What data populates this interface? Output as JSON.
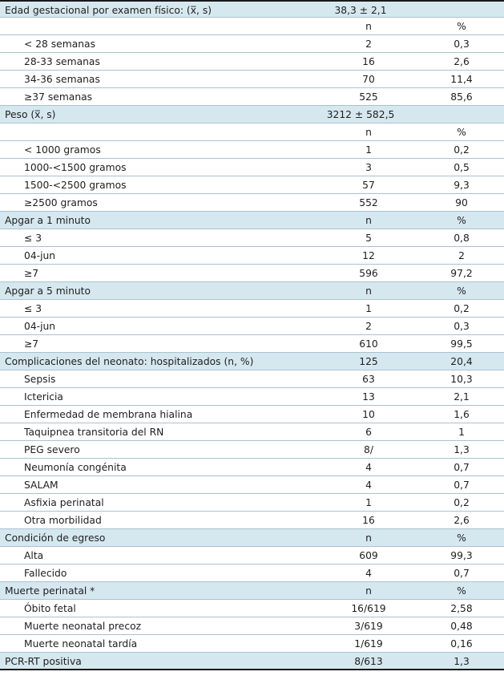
{
  "rows": [
    {
      "label": "Edad gestacional por examen físico: (x̅, s)",
      "value": "38,3 ± 2,1",
      "type": "section-single"
    },
    {
      "label": "",
      "n": "n",
      "pct": "%",
      "type": "header"
    },
    {
      "label": "< 28 semanas",
      "n": "2",
      "pct": "0,3",
      "type": "sub"
    },
    {
      "label": "28-33 semanas",
      "n": "16",
      "pct": "2,6",
      "type": "sub"
    },
    {
      "label": "34-36 semanas",
      "n": "70",
      "pct": "11,4",
      "type": "sub"
    },
    {
      "label": "≥37 semanas",
      "n": "525",
      "pct": "85,6",
      "type": "sub"
    },
    {
      "label": "Peso (x̅, s)",
      "value": "3212 ± 582,5",
      "type": "section-single"
    },
    {
      "label": "",
      "n": "n",
      "pct": "%",
      "type": "header"
    },
    {
      "label": "< 1000 gramos",
      "n": "1",
      "pct": "0,2",
      "type": "sub"
    },
    {
      "label": "1000-<1500 gramos",
      "n": "3",
      "pct": "0,5",
      "type": "sub"
    },
    {
      "label": "1500-<2500 gramos",
      "n": "57",
      "pct": "9,3",
      "type": "sub"
    },
    {
      "label": "≥2500 gramos",
      "n": "552",
      "pct": "90",
      "type": "sub"
    },
    {
      "label": "Apgar a 1 minuto",
      "n": "n",
      "pct": "%",
      "type": "section"
    },
    {
      "label": "≤ 3",
      "n": "5",
      "pct": "0,8",
      "type": "sub"
    },
    {
      "label": "04-jun",
      "n": "12",
      "pct": "2",
      "type": "sub"
    },
    {
      "label": "≥7",
      "n": "596",
      "pct": "97,2",
      "type": "sub"
    },
    {
      "label": "Apgar a 5 minuto",
      "n": "n",
      "pct": "%",
      "type": "section"
    },
    {
      "label": "≤ 3",
      "n": "1",
      "pct": "0,2",
      "type": "sub"
    },
    {
      "label": "04-jun",
      "n": "2",
      "pct": "0,3",
      "type": "sub"
    },
    {
      "label": "≥7",
      "n": "610",
      "pct": "99,5",
      "type": "sub"
    },
    {
      "label": "Complicaciones del neonato: hospitalizados (n, %)",
      "n": "125",
      "pct": "20,4",
      "type": "section"
    },
    {
      "label": "Sepsis",
      "n": "63",
      "pct": "10,3",
      "type": "sub"
    },
    {
      "label": "Ictericia",
      "n": "13",
      "pct": "2,1",
      "type": "sub"
    },
    {
      "label": "Enfermedad de membrana hialina",
      "n": "10",
      "pct": "1,6",
      "type": "sub"
    },
    {
      "label": "Taquipnea transitoria del RN",
      "n": "6",
      "pct": "1",
      "type": "sub"
    },
    {
      "label": "PEG severo",
      "n": "8/",
      "pct": "1,3",
      "type": "sub"
    },
    {
      "label": "Neumonía congénita",
      "n": "4",
      "pct": "0,7",
      "type": "sub"
    },
    {
      "label": "SALAM",
      "n": "4",
      "pct": "0,7",
      "type": "sub"
    },
    {
      "label": "Asfixia perinatal",
      "n": "1",
      "pct": "0,2",
      "type": "sub"
    },
    {
      "label": "Otra morbilidad",
      "n": "16",
      "pct": "2,6",
      "type": "sub"
    },
    {
      "label": "Condición de egreso",
      "n": "n",
      "pct": "%",
      "type": "section"
    },
    {
      "label": "Alta",
      "n": "609",
      "pct": "99,3",
      "type": "sub"
    },
    {
      "label": "Fallecido",
      "n": "4",
      "pct": "0,7",
      "type": "sub"
    },
    {
      "label": "Muerte perinatal *",
      "n": "n",
      "pct": "%",
      "type": "section"
    },
    {
      "label": "Óbito fetal",
      "n": "16/619",
      "pct": "2,58",
      "type": "sub"
    },
    {
      "label": "Muerte neonatal precoz",
      "n": "3/619",
      "pct": "0,48",
      "type": "sub"
    },
    {
      "label": "Muerte neonatal tardía",
      "n": "1/619",
      "pct": "0,16",
      "type": "sub"
    },
    {
      "label": "PCR-RT positiva",
      "n": "8/613",
      "pct": "1,3",
      "type": "section"
    }
  ],
  "colors": {
    "section_bg": "#d6e8ef",
    "rule": "#a9c2cf",
    "border": "#1a1a1a",
    "text": "#1e1e1e"
  }
}
